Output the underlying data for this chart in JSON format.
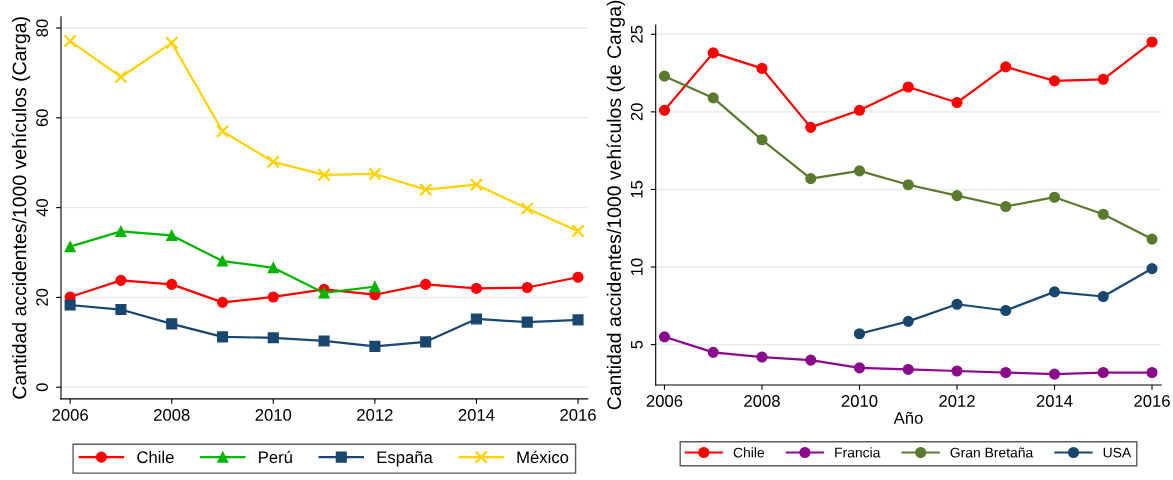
{
  "chart_data": [
    {
      "type": "line",
      "ylabel": "Cantidad accidentes/1000 vehículos (Carga)",
      "x": [
        2006,
        2007,
        2008,
        2009,
        2010,
        2011,
        2012,
        2013,
        2014,
        2015,
        2016
      ],
      "xlim": [
        2005.82,
        2016.19
      ],
      "xticks": [
        2006,
        2008,
        2010,
        2012,
        2014,
        2016
      ],
      "ylim": [
        -2.6,
        82.5
      ],
      "yticks": [
        0,
        20,
        40,
        60,
        80
      ],
      "grid": "y",
      "legend": "bottom",
      "line_style": "solid",
      "series": [
        {
          "name": "Chile",
          "color": "#ff0000",
          "marker": "circle",
          "values": [
            20.1,
            23.8,
            22.9,
            18.9,
            20.1,
            21.8,
            20.6,
            22.9,
            22.0,
            22.2,
            24.5
          ]
        },
        {
          "name": "Perú",
          "color": "#00b400",
          "marker": "triangle",
          "values": [
            31.3,
            34.7,
            33.8,
            28.1,
            26.6,
            21.0,
            22.4,
            null,
            null,
            null,
            null
          ]
        },
        {
          "name": "España",
          "color": "#1a476f",
          "marker": "square",
          "values": [
            18.3,
            17.3,
            14.1,
            11.2,
            11.0,
            10.3,
            9.1,
            10.1,
            15.2,
            14.5,
            15.0
          ]
        },
        {
          "name": "México",
          "color": "#ffd200",
          "marker": "cross",
          "values": [
            77.1,
            69.1,
            76.7,
            57.0,
            50.2,
            47.3,
            47.5,
            44.0,
            45.1,
            39.8,
            34.8
          ]
        }
      ]
    },
    {
      "type": "line",
      "ylabel": "Cantidad accidentes/1000 vehículos (de Carga)",
      "xlabel": "Año",
      "x": [
        2006,
        2007,
        2008,
        2009,
        2010,
        2011,
        2012,
        2013,
        2014,
        2015,
        2016
      ],
      "xlim": [
        2005.82,
        2016.19
      ],
      "xticks": [
        2006,
        2008,
        2010,
        2012,
        2014,
        2016
      ],
      "ylim": [
        2.4,
        25.6
      ],
      "yticks": [
        5,
        10,
        15,
        20,
        25
      ],
      "grid": "y",
      "legend": "bottom",
      "line_style": "solid",
      "marker": "circle",
      "series": [
        {
          "name": "Chile",
          "color": "#ff0000",
          "values": [
            20.1,
            23.8,
            22.8,
            19.0,
            20.1,
            21.6,
            20.6,
            22.9,
            22.0,
            22.1,
            24.5
          ]
        },
        {
          "name": "Francia",
          "color": "#8b0a8b",
          "values": [
            5.5,
            4.5,
            4.2,
            4.0,
            3.5,
            3.4,
            3.3,
            3.2,
            3.1,
            3.2,
            3.2
          ]
        },
        {
          "name": "Gran Bretaña",
          "color": "#5a7a2e",
          "values": [
            22.3,
            20.9,
            18.2,
            15.7,
            16.2,
            15.3,
            14.6,
            13.9,
            14.5,
            13.4,
            11.8
          ]
        },
        {
          "name": "USA",
          "color": "#1a476f",
          "values": [
            null,
            null,
            null,
            null,
            5.7,
            6.5,
            7.6,
            7.2,
            8.4,
            8.1,
            9.9
          ]
        }
      ]
    }
  ]
}
